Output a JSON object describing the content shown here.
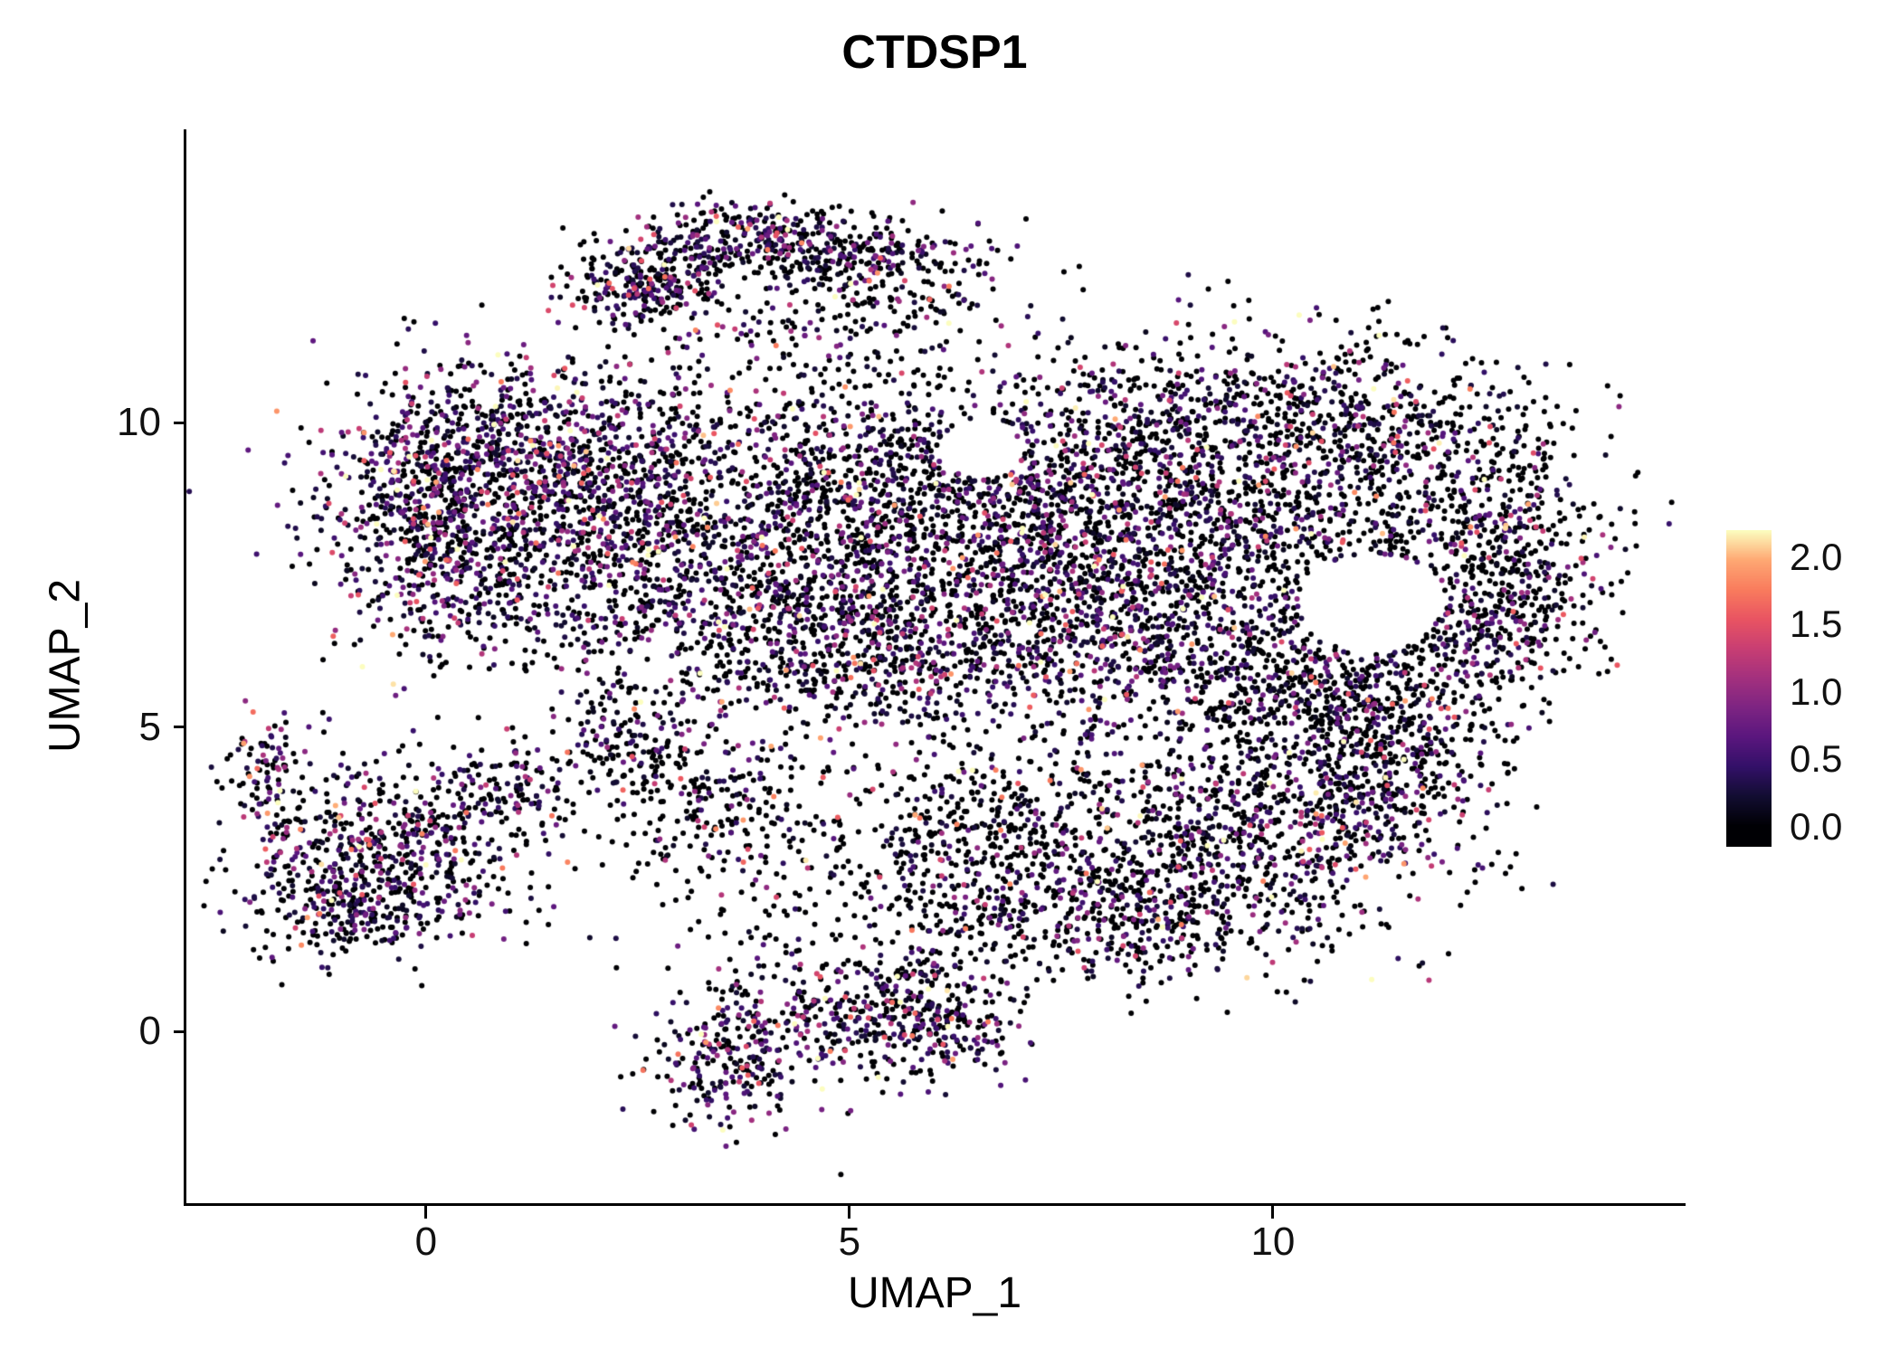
{
  "chart_data": {
    "type": "scatter",
    "title": "CTDSP1",
    "xlabel": "UMAP_1",
    "ylabel": "UMAP_2",
    "xlim": [
      -2.83,
      14.84
    ],
    "ylim": [
      -2.82,
      14.82
    ],
    "grid": false,
    "x_ticks": [
      {
        "v": 0,
        "label": "0"
      },
      {
        "v": 5,
        "label": "5"
      },
      {
        "v": 10,
        "label": "10"
      }
    ],
    "y_ticks": [
      {
        "v": 0,
        "label": "0"
      },
      {
        "v": 5,
        "label": "5"
      },
      {
        "v": 10,
        "label": "10"
      }
    ],
    "legend": {
      "position": "right",
      "bar_domain": [
        -0.15,
        2.2
      ],
      "ticks": [
        {
          "v": 2.0,
          "label": "2.0"
        },
        {
          "v": 1.5,
          "label": "1.5"
        },
        {
          "v": 1.0,
          "label": "1.0"
        },
        {
          "v": 0.5,
          "label": "0.5"
        },
        {
          "v": 0.0,
          "label": "0.0"
        }
      ]
    },
    "colormap": {
      "name": "magma",
      "value_domain": [
        0,
        2.2
      ],
      "stops": [
        [
          0.0,
          "#000004"
        ],
        [
          0.1,
          "#120d31"
        ],
        [
          0.2,
          "#331068"
        ],
        [
          0.3,
          "#5a167e"
        ],
        [
          0.4,
          "#7d2482"
        ],
        [
          0.5,
          "#a3307e"
        ],
        [
          0.6,
          "#c83e73"
        ],
        [
          0.7,
          "#e95462"
        ],
        [
          0.8,
          "#f97c5d"
        ],
        [
          0.9,
          "#fea873"
        ],
        [
          1.0,
          "#fcfdbf"
        ]
      ]
    },
    "point_radius": 3,
    "seed": 20240607,
    "expression_model": {
      "zero_fraction_note": "per-cluster p0",
      "nonzero_offset": 0.12,
      "exp_mean": 0.5,
      "max": 2.2
    },
    "holes": [
      {
        "x": 11.15,
        "y": 7.05,
        "rx": 0.85,
        "ry": 0.8
      },
      {
        "x": 6.55,
        "y": 9.55,
        "rx": 0.5,
        "ry": 0.45
      }
    ],
    "clusters": [
      {
        "x": 2.6,
        "y": 12.3,
        "sx": 0.45,
        "sy": 0.35,
        "n": 260,
        "p0": 0.5
      },
      {
        "x": 3.9,
        "y": 13.0,
        "sx": 0.7,
        "sy": 0.3,
        "n": 300,
        "p0": 0.5
      },
      {
        "x": 5.3,
        "y": 12.7,
        "sx": 0.7,
        "sy": 0.35,
        "n": 220,
        "p0": 0.55
      },
      {
        "x": 4.8,
        "y": 11.7,
        "sx": 1.3,
        "sy": 0.5,
        "n": 180,
        "p0": 0.7
      },
      {
        "x": 1.1,
        "y": 9.6,
        "sx": 1.1,
        "sy": 0.75,
        "n": 750,
        "p0": 0.42
      },
      {
        "x": 0.6,
        "y": 7.8,
        "sx": 0.9,
        "sy": 0.9,
        "n": 550,
        "p0": 0.5
      },
      {
        "x": -0.1,
        "y": 8.6,
        "sx": 0.5,
        "sy": 0.8,
        "n": 250,
        "p0": 0.5
      },
      {
        "x": 2.3,
        "y": 8.3,
        "sx": 0.9,
        "sy": 1.0,
        "n": 500,
        "p0": 0.5
      },
      {
        "x": 4.3,
        "y": 9.3,
        "sx": 1.2,
        "sy": 0.9,
        "n": 550,
        "p0": 0.6
      },
      {
        "x": 4.0,
        "y": 7.0,
        "sx": 1.2,
        "sy": 1.0,
        "n": 650,
        "p0": 0.5
      },
      {
        "x": 5.5,
        "y": 6.2,
        "sx": 0.9,
        "sy": 0.7,
        "n": 400,
        "p0": 0.5
      },
      {
        "x": 5.7,
        "y": 8.3,
        "sx": 0.9,
        "sy": 0.9,
        "n": 400,
        "p0": 0.6
      },
      {
        "x": 7.6,
        "y": 8.6,
        "sx": 1.2,
        "sy": 1.1,
        "n": 900,
        "p0": 0.45
      },
      {
        "x": 8.0,
        "y": 6.6,
        "sx": 1.0,
        "sy": 0.8,
        "n": 500,
        "p0": 0.5
      },
      {
        "x": 9.6,
        "y": 8.0,
        "sx": 1.2,
        "sy": 1.3,
        "n": 800,
        "p0": 0.6
      },
      {
        "x": 9.2,
        "y": 10.2,
        "sx": 1.3,
        "sy": 0.6,
        "n": 380,
        "p0": 0.6
      },
      {
        "x": 11.0,
        "y": 9.9,
        "sx": 0.9,
        "sy": 0.7,
        "n": 320,
        "p0": 0.65
      },
      {
        "x": 12.2,
        "y": 8.3,
        "sx": 0.9,
        "sy": 1.2,
        "n": 550,
        "p0": 0.68
      },
      {
        "x": 11.6,
        "y": 6.3,
        "sx": 0.9,
        "sy": 0.7,
        "n": 320,
        "p0": 0.68
      },
      {
        "x": 12.9,
        "y": 7.4,
        "sx": 0.5,
        "sy": 0.9,
        "n": 220,
        "p0": 0.7
      },
      {
        "x": 10.4,
        "y": 5.6,
        "sx": 0.8,
        "sy": 0.6,
        "n": 280,
        "p0": 0.65
      },
      {
        "x": -0.5,
        "y": 2.9,
        "sx": 0.85,
        "sy": 0.75,
        "n": 600,
        "p0": 0.5
      },
      {
        "x": -1.0,
        "y": 1.9,
        "sx": 0.5,
        "sy": 0.4,
        "n": 150,
        "p0": 0.55
      },
      {
        "x": -1.85,
        "y": 4.3,
        "sx": 0.22,
        "sy": 0.5,
        "n": 90,
        "p0": 0.5
      },
      {
        "x": 0.9,
        "y": 3.9,
        "sx": 0.45,
        "sy": 0.45,
        "n": 120,
        "p0": 0.6
      },
      {
        "x": 2.4,
        "y": 4.8,
        "sx": 0.5,
        "sy": 0.4,
        "n": 130,
        "p0": 0.6
      },
      {
        "x": 3.3,
        "y": 3.9,
        "sx": 0.6,
        "sy": 0.5,
        "n": 150,
        "p0": 0.65
      },
      {
        "x": 5.0,
        "y": 3.0,
        "sx": 1.6,
        "sy": 0.9,
        "n": 300,
        "p0": 0.8
      },
      {
        "x": 6.9,
        "y": 3.6,
        "sx": 0.9,
        "sy": 0.6,
        "n": 250,
        "p0": 0.7
      },
      {
        "x": 6.5,
        "y": 2.0,
        "sx": 0.7,
        "sy": 0.5,
        "n": 160,
        "p0": 0.7
      },
      {
        "x": 9.3,
        "y": 2.9,
        "sx": 1.3,
        "sy": 0.9,
        "n": 850,
        "p0": 0.55
      },
      {
        "x": 10.8,
        "y": 3.9,
        "sx": 0.8,
        "sy": 0.6,
        "n": 300,
        "p0": 0.6
      },
      {
        "x": 8.3,
        "y": 1.8,
        "sx": 0.7,
        "sy": 0.5,
        "n": 220,
        "p0": 0.6
      },
      {
        "x": 11.5,
        "y": 4.8,
        "sx": 0.6,
        "sy": 0.5,
        "n": 180,
        "p0": 0.7
      },
      {
        "x": 4.9,
        "y": 0.2,
        "sx": 0.8,
        "sy": 0.55,
        "n": 330,
        "p0": 0.5
      },
      {
        "x": 3.5,
        "y": -0.5,
        "sx": 0.45,
        "sy": 0.55,
        "n": 200,
        "p0": 0.45
      },
      {
        "x": 5.9,
        "y": 0.6,
        "sx": 0.5,
        "sy": 0.4,
        "n": 150,
        "p0": 0.55
      },
      {
        "x": 6.3,
        "y": -0.1,
        "sx": 0.35,
        "sy": 0.35,
        "n": 90,
        "p0": 0.5
      },
      {
        "x": 6.5,
        "y": 7.5,
        "sx": 3.0,
        "sy": 2.0,
        "n": 500,
        "p0": 0.75
      },
      {
        "x": 9.8,
        "y": 4.9,
        "sx": 1.2,
        "sy": 0.5,
        "n": 120,
        "p0": 0.8
      }
    ]
  }
}
